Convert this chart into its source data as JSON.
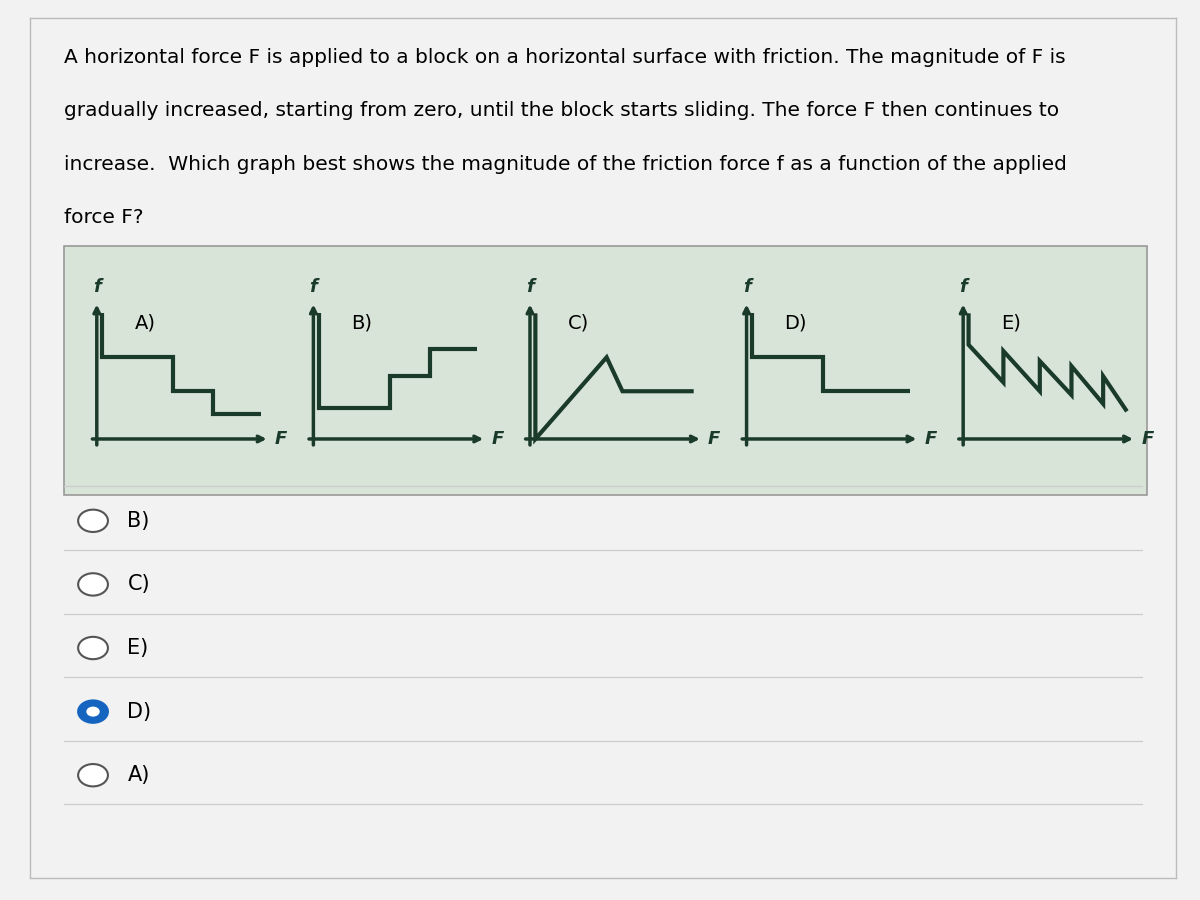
{
  "bg_color": "#f2f2f2",
  "panel_bg": "#d8e4d8",
  "white_bg": "#ffffff",
  "text_color": "#000000",
  "question_lines": [
    "A horizontal force F is applied to a block on a horizontal surface with friction. The magnitude of F is",
    "gradually increased, starting from zero, until the block starts sliding. The force F then continues to",
    "increase.  Which graph best shows the magnitude of the friction force f as a function of the applied",
    "force F?"
  ],
  "graphs": [
    {
      "label": "A)",
      "x": [
        0.0,
        0.0,
        0.45,
        0.45,
        0.7,
        0.7,
        1.0
      ],
      "y": [
        1.0,
        0.65,
        0.65,
        0.38,
        0.38,
        0.2,
        0.2
      ]
    },
    {
      "label": "B)",
      "x": [
        0.0,
        0.0,
        0.45,
        0.45,
        0.7,
        0.7,
        1.0
      ],
      "y": [
        1.0,
        0.25,
        0.25,
        0.5,
        0.5,
        0.72,
        0.72
      ]
    },
    {
      "label": "C)",
      "x": [
        0.0,
        0.0,
        0.45,
        0.55,
        0.55,
        1.0
      ],
      "y": [
        1.0,
        0.0,
        0.65,
        0.38,
        0.38,
        0.38
      ]
    },
    {
      "label": "D)",
      "x": [
        0.0,
        0.0,
        0.45,
        0.45,
        1.0
      ],
      "y": [
        1.0,
        0.65,
        0.65,
        0.38,
        0.38
      ]
    },
    {
      "label": "E)",
      "x": [
        0.0,
        0.0,
        0.22,
        0.22,
        0.45,
        0.45,
        0.65,
        0.65,
        0.85,
        0.85,
        1.0
      ],
      "y": [
        1.0,
        0.75,
        0.45,
        0.7,
        0.38,
        0.62,
        0.35,
        0.58,
        0.28,
        0.5,
        0.22
      ]
    }
  ],
  "options": [
    {
      "label": "B)",
      "selected": false
    },
    {
      "label": "C)",
      "selected": false
    },
    {
      "label": "E)",
      "selected": false
    },
    {
      "label": "D)",
      "selected": true
    },
    {
      "label": "A)",
      "selected": false
    }
  ],
  "line_color": "#1a3a2a",
  "axis_color": "#1a3a2a",
  "line_width": 3.0,
  "axis_lw": 2.5,
  "label_fontsize": 14,
  "axis_label_fontsize": 13,
  "question_fontsize": 14.5,
  "option_fontsize": 15
}
